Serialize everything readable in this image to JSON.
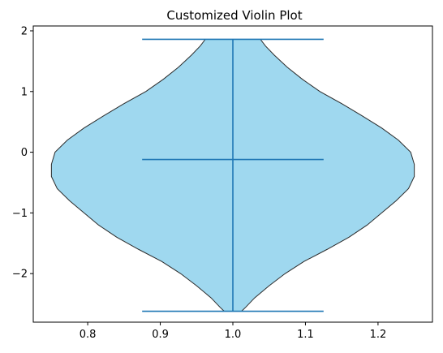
{
  "chart_data": {
    "type": "violin",
    "title": "Customized Violin Plot",
    "xlabel": "",
    "ylabel": "",
    "xlim": [
      0.725,
      1.275
    ],
    "ylim": [
      -2.8,
      2.08
    ],
    "x_ticks": [
      0.8,
      0.9,
      1.0,
      1.1,
      1.2
    ],
    "x_tick_labels": [
      "0.8",
      "0.9",
      "1.0",
      "1.1",
      "1.2"
    ],
    "y_ticks": [
      -2,
      -1,
      0,
      1,
      2
    ],
    "y_tick_labels": [
      "−2",
      "−1",
      "0",
      "1",
      "2"
    ],
    "grid": false,
    "violin": {
      "position": 1.0,
      "fill_color": "#87ceeb",
      "edge_color": "#2b2b2b",
      "stats_color": "#1f77b4",
      "min": -2.62,
      "max": 1.86,
      "median": -0.12,
      "density_profile": [
        {
          "y": -2.62,
          "half_width": 0.012
        },
        {
          "y": -2.55,
          "half_width": 0.018
        },
        {
          "y": -2.4,
          "half_width": 0.03
        },
        {
          "y": -2.2,
          "half_width": 0.05
        },
        {
          "y": -2.0,
          "half_width": 0.072
        },
        {
          "y": -1.8,
          "half_width": 0.098
        },
        {
          "y": -1.6,
          "half_width": 0.13
        },
        {
          "y": -1.4,
          "half_width": 0.16
        },
        {
          "y": -1.2,
          "half_width": 0.185
        },
        {
          "y": -1.0,
          "half_width": 0.205
        },
        {
          "y": -0.8,
          "half_width": 0.225
        },
        {
          "y": -0.6,
          "half_width": 0.242
        },
        {
          "y": -0.4,
          "half_width": 0.25
        },
        {
          "y": -0.2,
          "half_width": 0.25
        },
        {
          "y": 0.0,
          "half_width": 0.245
        },
        {
          "y": 0.2,
          "half_width": 0.228
        },
        {
          "y": 0.4,
          "half_width": 0.205
        },
        {
          "y": 0.6,
          "half_width": 0.178
        },
        {
          "y": 0.8,
          "half_width": 0.15
        },
        {
          "y": 1.0,
          "half_width": 0.12
        },
        {
          "y": 1.2,
          "half_width": 0.096
        },
        {
          "y": 1.4,
          "half_width": 0.075
        },
        {
          "y": 1.6,
          "half_width": 0.057
        },
        {
          "y": 1.75,
          "half_width": 0.045
        },
        {
          "y": 1.86,
          "half_width": 0.038
        }
      ]
    }
  }
}
